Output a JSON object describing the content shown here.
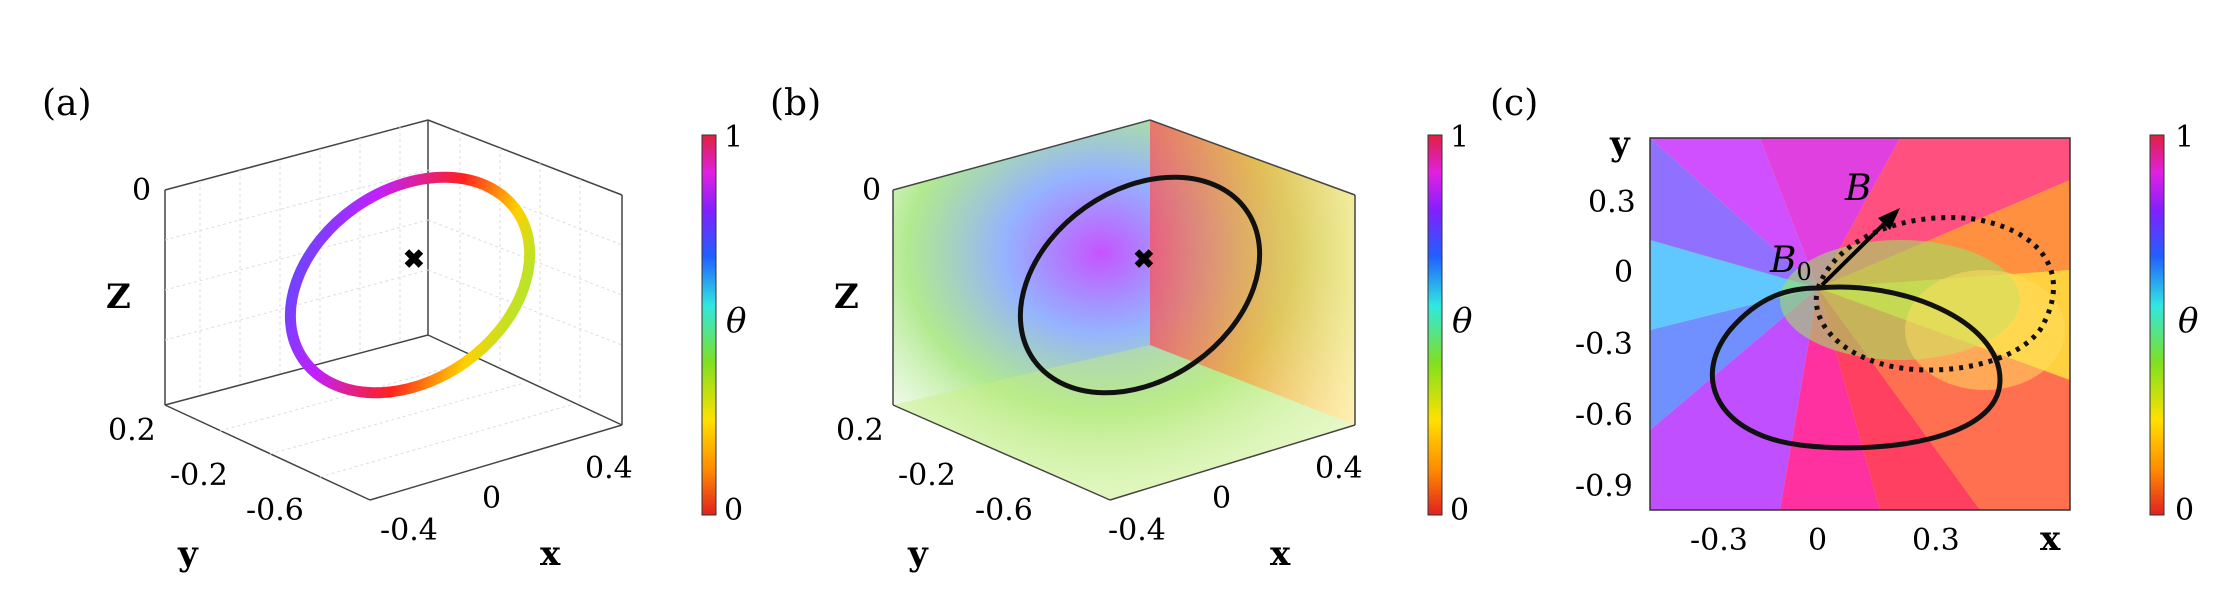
{
  "panel_a": {
    "label": "(a)",
    "z_axis": {
      "label": "Z",
      "ticks": [
        "0"
      ]
    },
    "y_axis": {
      "label": "y",
      "ticks": [
        "0.2",
        "-0.2",
        "-0.6"
      ]
    },
    "x_axis": {
      "label": "x",
      "ticks": [
        "-0.4",
        "0",
        "0.4"
      ]
    }
  },
  "panel_b": {
    "label": "(b)",
    "z_axis": {
      "label": "Z",
      "ticks": [
        "0"
      ]
    },
    "y_axis": {
      "label": "y",
      "ticks": [
        "0.2",
        "-0.2",
        "-0.6"
      ]
    },
    "x_axis": {
      "label": "x",
      "ticks": [
        "-0.4",
        "0",
        "0.4"
      ]
    }
  },
  "panel_c": {
    "label": "(c)",
    "y_axis": {
      "label": "y",
      "ticks": [
        "0.3",
        "0",
        "-0.3",
        "-0.6",
        "-0.9"
      ]
    },
    "x_axis": {
      "label": "x",
      "ticks": [
        "-0.3",
        "0",
        "0.3"
      ]
    },
    "annotations": {
      "b": "B",
      "b0_main": "B",
      "b0_sub": "0"
    }
  },
  "colorbar": {
    "label": "θ",
    "max": "1",
    "min": "0"
  },
  "colors": {
    "ring_gradient": [
      "#ff0000",
      "#ffaa00",
      "#ffff00",
      "#80ff00",
      "#00ffff",
      "#0080ff",
      "#0000ff",
      "#ff00ff",
      "#ff0000"
    ]
  }
}
